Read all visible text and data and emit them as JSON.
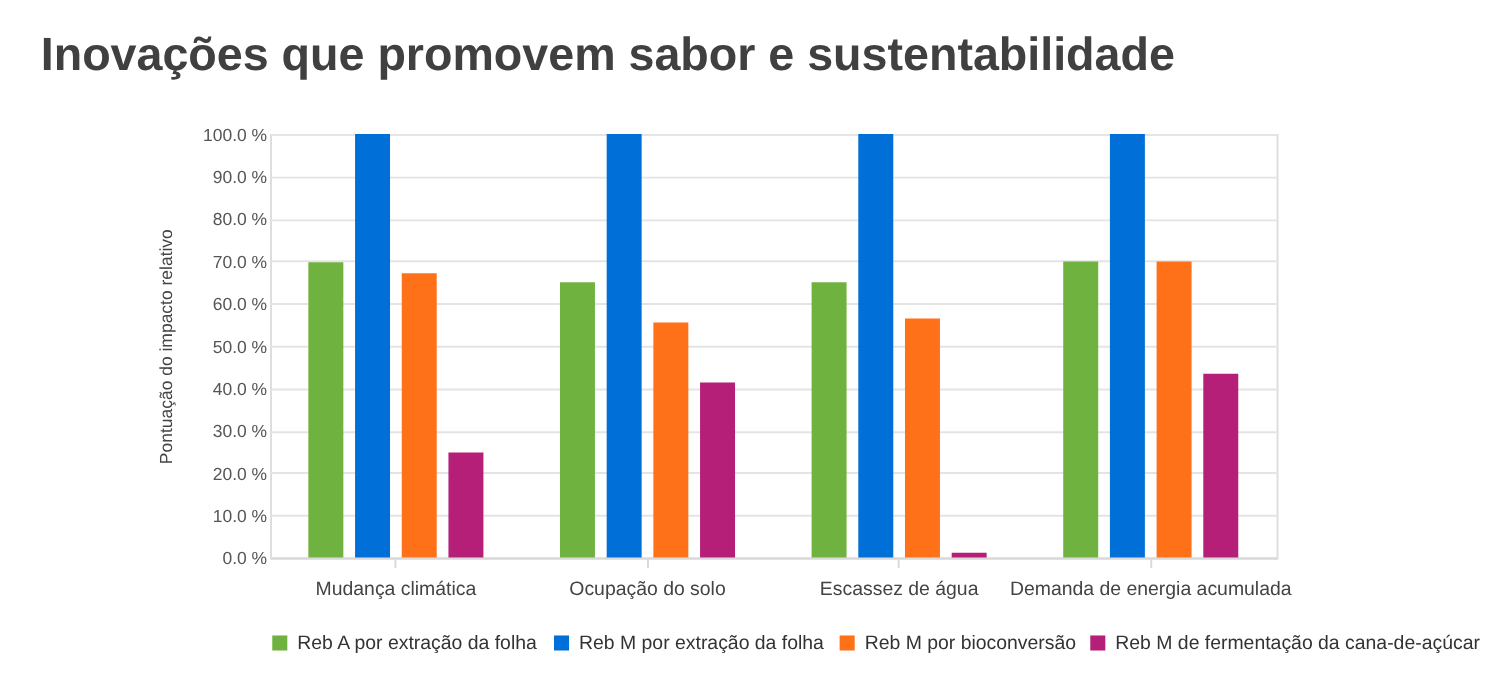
{
  "chart_data": {
    "type": "bar",
    "title": "Inovações que promovem sabor e sustentabilidade",
    "ylabel": "Pontuação do impacto relativo",
    "categories": [
      "Mudança climática",
      "Ocupação do solo",
      "Escassez de água",
      "Demanda de energia acumulada"
    ],
    "series": [
      {
        "name": "Reb A por extração da folha",
        "color": "#70b23f",
        "values": [
          69.7,
          65.0,
          65.0,
          69.9
        ]
      },
      {
        "name": "Reb M por extração da folha",
        "color": "#0070d8",
        "values": [
          100,
          100,
          100,
          100
        ]
      },
      {
        "name": "Reb M por bioconversão",
        "color": "#ff7119",
        "values": [
          67.1,
          55.5,
          56.4,
          69.9
        ]
      },
      {
        "name": "Reb M de fermentação da cana-de-açúcar",
        "color": "#b51f78",
        "values": [
          24.8,
          41.3,
          1.1,
          43.4
        ]
      }
    ],
    "ylim": [
      0,
      100
    ],
    "yticks": [
      {
        "value": 0,
        "label": "0.0 %"
      },
      {
        "value": 10,
        "label": "10.0 %"
      },
      {
        "value": 20,
        "label": "20.0 %"
      },
      {
        "value": 30,
        "label": "30.0 %"
      },
      {
        "value": 40,
        "label": "40.0 %"
      },
      {
        "value": 50,
        "label": "50.0 %"
      },
      {
        "value": 60,
        "label": "60.0 %"
      },
      {
        "value": 70,
        "label": "70.0 %"
      },
      {
        "value": 80,
        "label": "80.0 %"
      },
      {
        "value": 90,
        "label": "90.0 %"
      },
      {
        "value": 100,
        "label": "100.0 %"
      }
    ],
    "grid": "y",
    "legend": "bottom"
  }
}
